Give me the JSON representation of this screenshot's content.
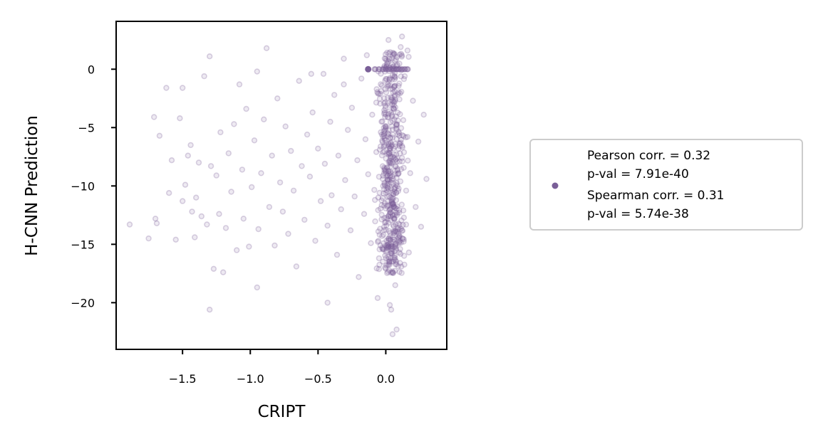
{
  "chart_data": {
    "type": "scatter",
    "xlabel": "CRIPT",
    "ylabel": "H-CNN Prediction",
    "xlim": [
      -1.99,
      0.45
    ],
    "ylim": [
      -24.0,
      4.1
    ],
    "xticks": [
      -1.5,
      -1.0,
      -0.5,
      0.0
    ],
    "xtick_labels": [
      "−1.5",
      "−1.0",
      "−0.5",
      "0.0"
    ],
    "yticks": [
      0,
      -5,
      -10,
      -15,
      -20
    ],
    "ytick_labels": [
      "0",
      "−5",
      "−10",
      "−15",
      "−20"
    ],
    "grid": false,
    "legend_position": "right, outside plot",
    "colors": {
      "points": "#7a5f98",
      "legend_border": "#cccccc"
    },
    "legend": {
      "lines": [
        "Pearson corr. = 0.32",
        "p-val = 7.91e-40",
        "Spearman corr. = 0.31",
        "p-val = 5.74e-38"
      ]
    },
    "series": [
      {
        "name": "",
        "points": [
          [
            -1.89,
            -13.3
          ],
          [
            -1.75,
            -14.5
          ],
          [
            -1.71,
            -4.1
          ],
          [
            -1.7,
            -12.8
          ],
          [
            -1.69,
            -13.2
          ],
          [
            -1.67,
            -5.7
          ],
          [
            -1.62,
            -1.6
          ],
          [
            -1.6,
            -10.6
          ],
          [
            -1.58,
            -7.8
          ],
          [
            -1.55,
            -14.6
          ],
          [
            -1.52,
            -4.2
          ],
          [
            -1.5,
            -11.3
          ],
          [
            -1.48,
            -9.9
          ],
          [
            -1.46,
            -7.4
          ],
          [
            -1.44,
            -6.5
          ],
          [
            -1.43,
            -12.2
          ],
          [
            -1.41,
            -14.4
          ],
          [
            -1.4,
            -11.0
          ],
          [
            -1.38,
            -8.0
          ],
          [
            -1.36,
            -12.6
          ],
          [
            -1.34,
            -0.6
          ],
          [
            -1.32,
            -13.3
          ],
          [
            -1.3,
            1.1
          ],
          [
            -1.29,
            -8.3
          ],
          [
            -1.27,
            -17.1
          ],
          [
            -1.25,
            -9.1
          ],
          [
            -1.23,
            -12.4
          ],
          [
            -1.22,
            -5.4
          ],
          [
            -1.2,
            -17.4
          ],
          [
            -1.18,
            -13.6
          ],
          [
            -1.16,
            -7.2
          ],
          [
            -1.14,
            -10.5
          ],
          [
            -1.12,
            -4.7
          ],
          [
            -1.1,
            -15.5
          ],
          [
            -1.08,
            -1.3
          ],
          [
            -1.06,
            -8.6
          ],
          [
            -1.05,
            -12.8
          ],
          [
            -1.03,
            -3.4
          ],
          [
            -1.01,
            -15.2
          ],
          [
            -0.99,
            -10.1
          ],
          [
            -0.97,
            -6.1
          ],
          [
            -0.95,
            -0.2
          ],
          [
            -0.94,
            -13.7
          ],
          [
            -0.92,
            -8.9
          ],
          [
            -0.9,
            -4.3
          ],
          [
            -0.88,
            1.8
          ],
          [
            -0.86,
            -11.8
          ],
          [
            -0.84,
            -7.4
          ],
          [
            -0.82,
            -15.1
          ],
          [
            -0.8,
            -2.5
          ],
          [
            -0.78,
            -9.7
          ],
          [
            -0.76,
            -12.2
          ],
          [
            -0.74,
            -4.9
          ],
          [
            -0.72,
            -14.1
          ],
          [
            -0.7,
            -7.0
          ],
          [
            -0.68,
            -10.4
          ],
          [
            -0.66,
            -16.9
          ],
          [
            -0.64,
            -1.0
          ],
          [
            -0.62,
            -8.3
          ],
          [
            -0.6,
            -12.9
          ],
          [
            -0.58,
            -5.6
          ],
          [
            -0.56,
            -9.2
          ],
          [
            -0.54,
            -3.7
          ],
          [
            -0.52,
            -14.7
          ],
          [
            -0.5,
            -6.8
          ],
          [
            -0.48,
            -11.3
          ],
          [
            -0.46,
            -0.4
          ],
          [
            -0.45,
            -8.1
          ],
          [
            -0.43,
            -13.4
          ],
          [
            -0.41,
            -4.5
          ],
          [
            -0.4,
            -10.8
          ],
          [
            -0.38,
            -2.2
          ],
          [
            -0.36,
            -15.9
          ],
          [
            -0.35,
            -7.4
          ],
          [
            -0.33,
            -12.0
          ],
          [
            -0.31,
            -1.3
          ],
          [
            -0.3,
            -9.5
          ],
          [
            -0.28,
            -5.2
          ],
          [
            -0.26,
            -13.8
          ],
          [
            -0.25,
            -3.3
          ],
          [
            -0.23,
            -10.9
          ],
          [
            -0.21,
            -7.8
          ],
          [
            -0.2,
            -17.8
          ],
          [
            -0.18,
            -0.8
          ],
          [
            -0.16,
            -12.4
          ],
          [
            -0.15,
            -6.0
          ],
          [
            -0.13,
            -9.0
          ],
          [
            -0.11,
            -14.9
          ],
          [
            -0.1,
            -3.9
          ],
          [
            -0.08,
            -11.2
          ],
          [
            -0.07,
            -7.1
          ],
          [
            -0.05,
            -16.2
          ],
          [
            -0.04,
            -2.1
          ],
          [
            -0.02,
            -10.0
          ],
          [
            -0.01,
            -5.5
          ],
          [
            0.0,
            -13.1
          ],
          [
            0.01,
            -8.4
          ],
          [
            0.02,
            -1.4
          ],
          [
            0.03,
            -20.2
          ],
          [
            0.04,
            -6.6
          ],
          [
            0.05,
            -11.5
          ],
          [
            0.06,
            -3.1
          ],
          [
            0.07,
            -18.5
          ],
          [
            0.08,
            -9.3
          ],
          [
            0.09,
            -4.4
          ],
          [
            0.1,
            -14.3
          ],
          [
            0.11,
            1.9
          ],
          [
            0.12,
            -7.6
          ],
          [
            0.13,
            -12.1
          ],
          [
            0.14,
            -0.6
          ],
          [
            0.15,
            -10.4
          ],
          [
            0.16,
            -5.8
          ],
          [
            0.17,
            -15.7
          ],
          [
            0.18,
            -8.9
          ],
          [
            0.2,
            -2.7
          ],
          [
            0.22,
            -11.8
          ],
          [
            0.24,
            -6.2
          ],
          [
            0.26,
            -13.5
          ],
          [
            0.28,
            -3.9
          ],
          [
            0.3,
            -9.4
          ],
          [
            -1.3,
            -20.6
          ],
          [
            -0.43,
            -20.0
          ],
          [
            0.05,
            -22.7
          ],
          [
            0.08,
            -22.3
          ],
          [
            -0.06,
            -19.6
          ],
          [
            0.04,
            -20.6
          ],
          [
            -1.5,
            -1.6
          ],
          [
            -0.95,
            -18.7
          ],
          [
            -0.55,
            -0.4
          ],
          [
            0.12,
            2.8
          ],
          [
            0.02,
            2.5
          ],
          [
            -0.14,
            1.2
          ],
          [
            0.16,
            1.6
          ],
          [
            -0.31,
            0.9
          ]
        ],
        "highlight_point": [
          -0.13,
          0.0
        ],
        "zero_row_x": [
          -0.08,
          -0.05,
          -0.02,
          0.0,
          0.02,
          0.04,
          0.06,
          0.08,
          0.1,
          0.12,
          0.14,
          0.16
        ],
        "dense_cluster": {
          "x_range": [
            -0.1,
            0.18
          ],
          "y_range": [
            -17.5,
            1.5
          ],
          "count": 520
        }
      }
    ]
  }
}
